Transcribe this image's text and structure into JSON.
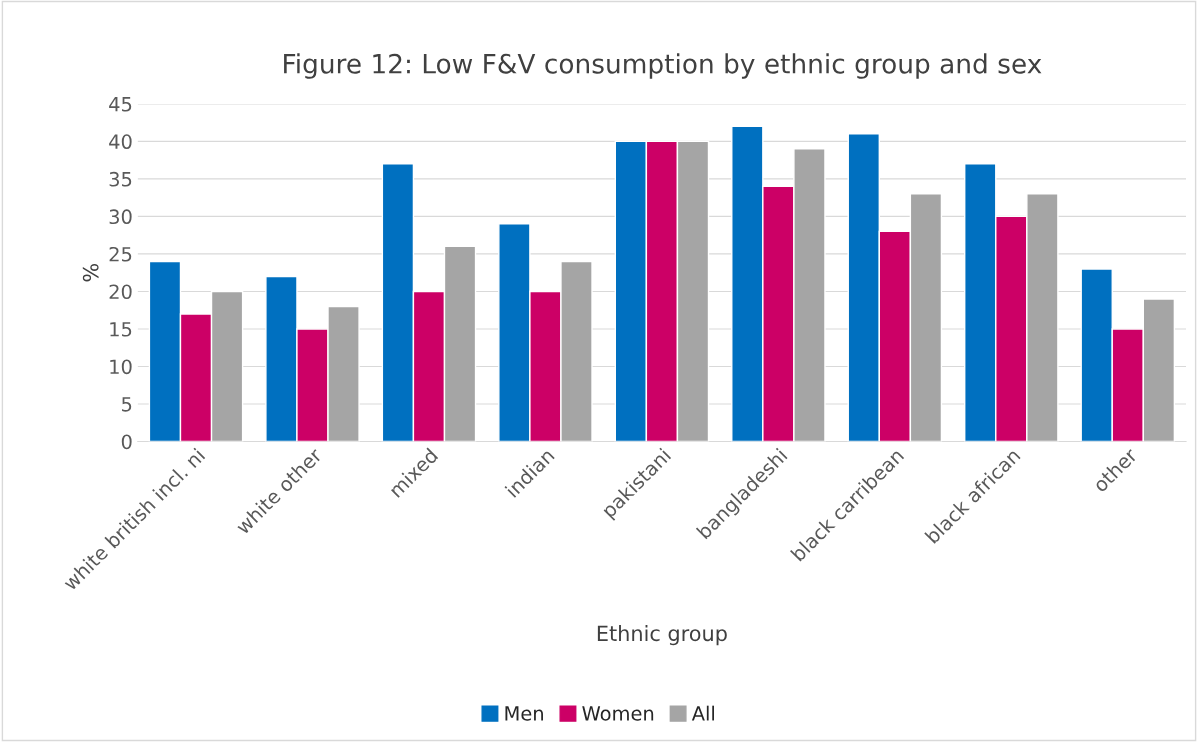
{
  "chart_data": {
    "type": "bar",
    "title": "Figure 12: Low F&V consumption by ethnic group and sex",
    "xlabel": "Ethnic group",
    "ylabel": "%",
    "categories": [
      "white british incl. ni",
      "white other",
      "mixed",
      "indian",
      "pakistani",
      "bangladeshi",
      "black carribean",
      "black african",
      "other"
    ],
    "series": [
      {
        "name": "Men",
        "color": "#0070c0",
        "values": [
          24,
          22,
          37,
          29,
          40,
          42,
          41,
          37,
          23
        ]
      },
      {
        "name": "Women",
        "color": "#cc0066",
        "values": [
          17,
          15,
          20,
          20,
          40,
          34,
          28,
          30,
          15
        ]
      },
      {
        "name": "All",
        "color": "#a5a5a5",
        "values": [
          20,
          18,
          26,
          24,
          40,
          39,
          33,
          33,
          19
        ]
      }
    ],
    "ylim": [
      0,
      45
    ],
    "yticks": [
      0,
      5,
      10,
      15,
      20,
      25,
      30,
      35,
      40,
      45
    ],
    "grid": "y",
    "legend": "bottom"
  }
}
